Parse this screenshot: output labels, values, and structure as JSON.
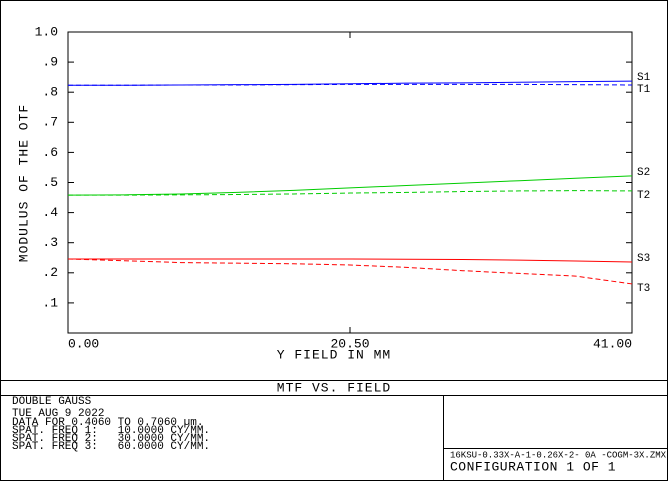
{
  "chart_data": {
    "type": "line",
    "title": "MTF VS. FIELD",
    "x_label": "Y FIELD IN  MM",
    "y_label": "MODULUS OF THE OTF",
    "x": [
      0,
      4.1,
      8.2,
      12.3,
      16.4,
      20.5,
      24.6,
      28.7,
      32.8,
      36.9,
      41
    ],
    "xlim": [
      0,
      41
    ],
    "xticks": [
      {
        "value": 0,
        "label": "0.00"
      },
      {
        "value": 20.5,
        "label": "20.50"
      },
      {
        "value": 41,
        "label": "41.00"
      }
    ],
    "ylim": [
      0,
      1
    ],
    "yticks": [
      {
        "value": 0.1,
        "label": ".1"
      },
      {
        "value": 0.2,
        "label": ".2"
      },
      {
        "value": 0.3,
        "label": ".3"
      },
      {
        "value": 0.4,
        "label": ".4"
      },
      {
        "value": 0.5,
        "label": ".5"
      },
      {
        "value": 0.6,
        "label": ".6"
      },
      {
        "value": 0.7,
        "label": ".7"
      },
      {
        "value": 0.8,
        "label": ".8"
      },
      {
        "value": 0.9,
        "label": ".9"
      },
      {
        "value": 1,
        "label": "1.0"
      }
    ],
    "series": [
      {
        "name": "S1",
        "color": "#0000ff",
        "dashed": false,
        "values": [
          0.823,
          0.823,
          0.824,
          0.825,
          0.826,
          0.828,
          0.83,
          0.831,
          0.833,
          0.835,
          0.837
        ]
      },
      {
        "name": "T1",
        "color": "#0000ff",
        "dashed": true,
        "values": [
          0.823,
          0.823,
          0.824,
          0.824,
          0.825,
          0.826,
          0.826,
          0.826,
          0.826,
          0.825,
          0.824
        ]
      },
      {
        "name": "S2",
        "color": "#00cc00",
        "dashed": false,
        "values": [
          0.458,
          0.459,
          0.462,
          0.467,
          0.474,
          0.482,
          0.49,
          0.498,
          0.506,
          0.514,
          0.522
        ]
      },
      {
        "name": "T2",
        "color": "#00cc00",
        "dashed": true,
        "values": [
          0.458,
          0.458,
          0.459,
          0.46,
          0.462,
          0.465,
          0.467,
          0.47,
          0.472,
          0.473,
          0.472
        ]
      },
      {
        "name": "S3",
        "color": "#ff0000",
        "dashed": false,
        "values": [
          0.246,
          0.246,
          0.246,
          0.246,
          0.246,
          0.246,
          0.245,
          0.244,
          0.242,
          0.239,
          0.236
        ]
      },
      {
        "name": "T3",
        "color": "#ff0000",
        "dashed": true,
        "values": [
          0.246,
          0.24,
          0.234,
          0.232,
          0.23,
          0.226,
          0.218,
          0.207,
          0.198,
          0.189,
          0.163
        ]
      }
    ]
  },
  "footer": {
    "lens": "DOUBLE GAUSS",
    "date": "TUE AUG 9 2022",
    "data_range": "DATA FOR 0.4060 TO 0.7060 µm.",
    "freq_lines": [
      {
        "text": "SPAT. FREQ 1:   10.0000 CY/MM.",
        "color": "#0000ff"
      },
      {
        "text": "SPAT. FREQ 2:   30.0000 CY/MM.",
        "color": "#00cc00"
      },
      {
        "text": "SPAT. FREQ 3:   60.0000 CY/MM.",
        "color": "#ff0000"
      }
    ],
    "file": "16KSU-0.33X-A-1-0.26X-2- 0A  -COGM-3X.ZMX",
    "configuration": "CONFIGURATION  1  OF  1"
  }
}
